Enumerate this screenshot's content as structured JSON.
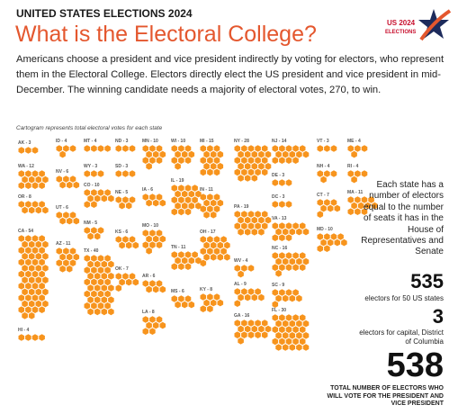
{
  "header": {
    "kicker": "UNITED STATES ELECTIONS 2024",
    "title": "What is the Electoral College?",
    "logo": {
      "line1": "US 2024",
      "line2": "ELECTIONS"
    }
  },
  "intro": "Americans choose a president and vice president indirectly by voting for electors, who represent them in the Electoral College.  Electors directly elect the US president and vice president in mid-December. The winning candidate needs a majority of electoral votes, 270, to win.",
  "cartogram": {
    "caption": "Cartogram represents total electoral votes for each state",
    "color": "#f7941d",
    "states": [
      {
        "label": "AK - 3",
        "value": 3
      },
      {
        "label": "WA - 12",
        "value": 12
      },
      {
        "label": "OR - 8",
        "value": 8
      },
      {
        "label": "CA - 54",
        "value": 54
      },
      {
        "label": "HI - 4",
        "value": 4
      },
      {
        "label": "ID - 4",
        "value": 4
      },
      {
        "label": "NV - 6",
        "value": 6
      },
      {
        "label": "UT - 6",
        "value": 6
      },
      {
        "label": "AZ - 11",
        "value": 11
      },
      {
        "label": "MT - 4",
        "value": 4
      },
      {
        "label": "WY - 3",
        "value": 3
      },
      {
        "label": "CO - 10",
        "value": 10
      },
      {
        "label": "NM - 5",
        "value": 5
      },
      {
        "label": "TX - 40",
        "value": 40
      },
      {
        "label": "ND - 3",
        "value": 3
      },
      {
        "label": "SD - 3",
        "value": 3
      },
      {
        "label": "NE - 5",
        "value": 5
      },
      {
        "label": "KS - 6",
        "value": 6
      },
      {
        "label": "OK - 7",
        "value": 7
      },
      {
        "label": "MN - 10",
        "value": 10
      },
      {
        "label": "IA - 6",
        "value": 6
      },
      {
        "label": "MO - 10",
        "value": 10
      },
      {
        "label": "AR - 6",
        "value": 6
      },
      {
        "label": "LA - 8",
        "value": 8
      },
      {
        "label": "WI - 10",
        "value": 10
      },
      {
        "label": "IL - 19",
        "value": 19
      },
      {
        "label": "TN - 11",
        "value": 11
      },
      {
        "label": "MS - 6",
        "value": 6
      },
      {
        "label": "MI - 15",
        "value": 15
      },
      {
        "label": "IN - 11",
        "value": 11
      },
      {
        "label": "OH - 17",
        "value": 17
      },
      {
        "label": "KY - 8",
        "value": 8
      },
      {
        "label": "NY - 28",
        "value": 28
      },
      {
        "label": "PA - 19",
        "value": 19
      },
      {
        "label": "WV - 4",
        "value": 4
      },
      {
        "label": "AL - 9",
        "value": 9
      },
      {
        "label": "GA - 16",
        "value": 16
      },
      {
        "label": "NJ - 14",
        "value": 14
      },
      {
        "label": "DE - 3",
        "value": 3
      },
      {
        "label": "DC - 3",
        "value": 3
      },
      {
        "label": "VA - 13",
        "value": 13
      },
      {
        "label": "NC - 16",
        "value": 16
      },
      {
        "label": "SC - 9",
        "value": 9
      },
      {
        "label": "FL - 30",
        "value": 30
      },
      {
        "label": "VT - 3",
        "value": 3
      },
      {
        "label": "NH - 4",
        "value": 4
      },
      {
        "label": "CT - 7",
        "value": 7
      },
      {
        "label": "MD - 10",
        "value": 10
      },
      {
        "label": "ME - 4",
        "value": 4
      },
      {
        "label": "RI - 4",
        "value": 4
      },
      {
        "label": "MA - 11",
        "value": 11
      }
    ]
  },
  "explainer": "Each state has a number of electors equal to the number of seats it has in the House of Representatives and Senate",
  "stats": [
    {
      "number": "535",
      "text": "electors for 50 US states"
    },
    {
      "number": "3",
      "text": "electors  for capital, District of Columbia"
    },
    {
      "number": "538",
      "text": "TOTAL NUMBER OF ELECTORS WHO WILL VOTE FOR THE PRESIDENT AND VICE PRESIDENT"
    }
  ]
}
